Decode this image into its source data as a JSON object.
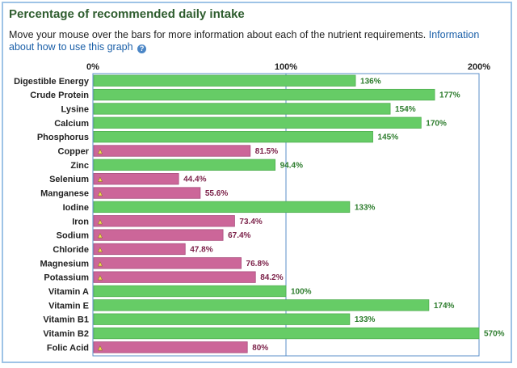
{
  "header": {
    "title": "Percentage of recommended daily intake",
    "description": "Move your mouse over the bars for more information about each of the nutrient requirements.",
    "link_text": "Information about how to use this graph",
    "help_icon": "question-circle-icon"
  },
  "chart_data": {
    "type": "bar",
    "orientation": "horizontal",
    "xlim": [
      0,
      200
    ],
    "ticks": [
      {
        "value": 0,
        "label": "0%"
      },
      {
        "value": 100,
        "label": "100%"
      },
      {
        "value": 200,
        "label": "200%"
      }
    ],
    "reference_line": 100,
    "colors": {
      "ok": "#66cc66",
      "deficient": "#cc6699",
      "ok_text": "#2e7d2e",
      "deficient_text": "#7a1f47",
      "axis": "#5b8fc9"
    },
    "warning_icon": "warning-triangle-icon",
    "categories": [
      "Digestible Energy",
      "Crude Protein",
      "Lysine",
      "Calcium",
      "Phosphorus",
      "Copper",
      "Zinc",
      "Selenium",
      "Manganese",
      "Iodine",
      "Iron",
      "Sodium",
      "Chloride",
      "Magnesium",
      "Potassium",
      "Vitamin A",
      "Vitamin E",
      "Vitamin B1",
      "Vitamin B2",
      "Folic Acid"
    ],
    "values": [
      136,
      177,
      154,
      170,
      145,
      81.5,
      94.4,
      44.4,
      55.6,
      133,
      73.4,
      67.4,
      47.8,
      76.8,
      84.2,
      100,
      174,
      133,
      570,
      80
    ],
    "value_labels": [
      "136%",
      "177%",
      "154%",
      "170%",
      "145%",
      "81.5%",
      "94.4%",
      "44.4%",
      "55.6%",
      "133%",
      "73.4%",
      "67.4%",
      "47.8%",
      "76.8%",
      "84.2%",
      "100%",
      "174%",
      "133%",
      "570%",
      "80%"
    ],
    "warnings": [
      false,
      false,
      false,
      false,
      false,
      true,
      false,
      true,
      true,
      false,
      true,
      true,
      true,
      true,
      true,
      false,
      false,
      false,
      false,
      true
    ]
  }
}
